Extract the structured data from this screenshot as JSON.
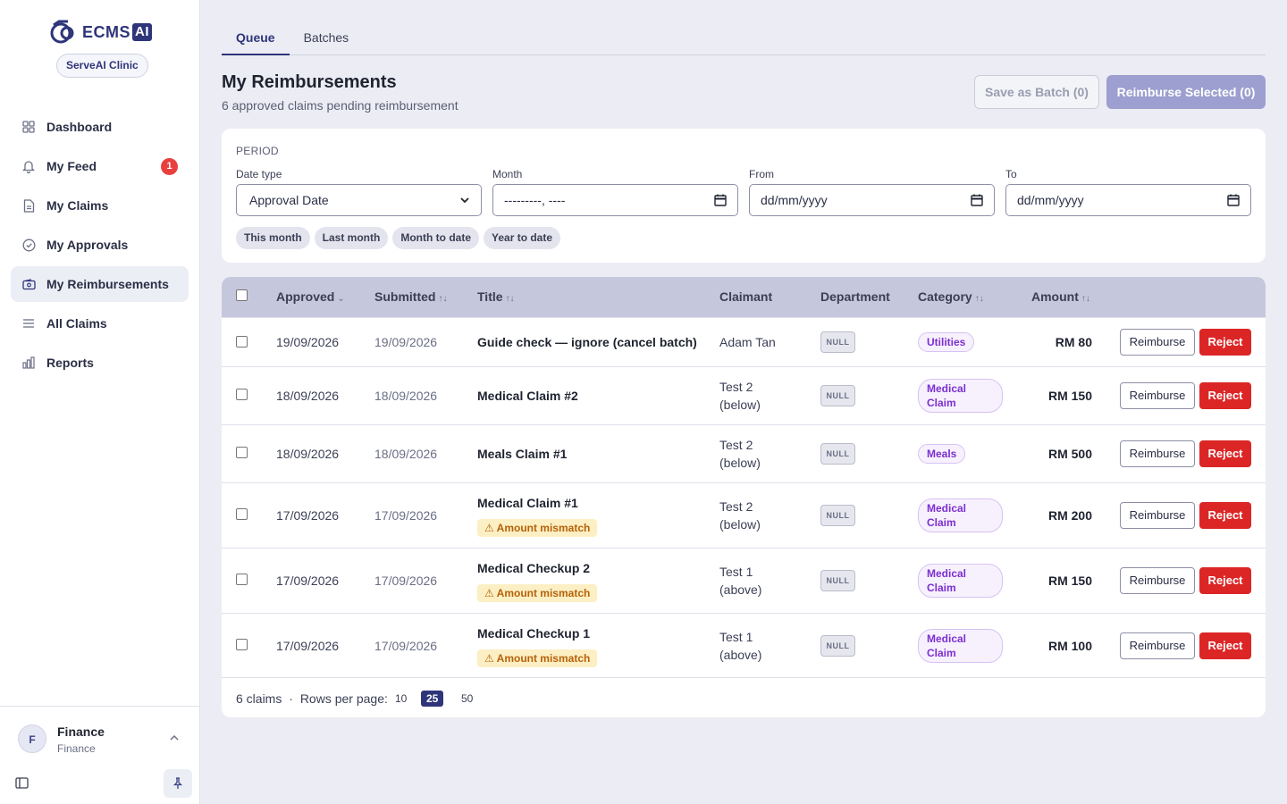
{
  "app": {
    "name": "ECMS",
    "name_suffix": "AI",
    "org": "ServeAI Clinic"
  },
  "sidebar": {
    "items": [
      {
        "label": "Dashboard",
        "icon": "grid-icon"
      },
      {
        "label": "My Feed",
        "icon": "bell-icon",
        "badge": "1"
      },
      {
        "label": "My Claims",
        "icon": "document-icon"
      },
      {
        "label": "My Approvals",
        "icon": "check-circle-icon"
      },
      {
        "label": "My Reimbursements",
        "icon": "wallet-icon",
        "active": true
      },
      {
        "label": "All Claims",
        "icon": "list-icon"
      },
      {
        "label": "Reports",
        "icon": "bar-chart-icon"
      }
    ],
    "user": {
      "initial": "F",
      "name": "Finance",
      "role": "Finance"
    }
  },
  "tabs": [
    {
      "label": "Queue",
      "active": true
    },
    {
      "label": "Batches",
      "active": false
    }
  ],
  "header": {
    "title": "My Reimbursements",
    "subtitle": "6 approved claims pending reimbursement",
    "save_batch_label": "Save as Batch (0)",
    "reimburse_selected_label": "Reimburse Selected (0)"
  },
  "period": {
    "section_label": "PERIOD",
    "date_type_label": "Date type",
    "date_type_value": "Approval Date",
    "month_label": "Month",
    "month_value": "---------, ----",
    "from_label": "From",
    "from_value": "dd/mm/yyyy",
    "to_label": "To",
    "to_value": "dd/mm/yyyy",
    "presets": [
      "This month",
      "Last month",
      "Month to date",
      "Year to date"
    ]
  },
  "table": {
    "columns": {
      "approved": "Approved",
      "submitted": "Submitted",
      "title": "Title",
      "claimant": "Claimant",
      "department": "Department",
      "category": "Category",
      "amount": "Amount"
    },
    "sort_desc_glyph": "⌄",
    "sort_glyph": "↑↓",
    "reimburse_label": "Reimburse",
    "reject_label": "Reject",
    "rows": [
      {
        "approved": "19/09/2026",
        "submitted": "19/09/2026",
        "title": "Guide check — ignore (cancel batch)",
        "warning": "",
        "claimant_line1": "Adam Tan",
        "claimant_line2": "",
        "department": "NULL",
        "category_line1": "Utilities",
        "category_line2": "",
        "amount": "RM 80"
      },
      {
        "approved": "18/09/2026",
        "submitted": "18/09/2026",
        "title": "Medical Claim #2",
        "warning": "",
        "claimant_line1": "Test 2",
        "claimant_line2": "(below)",
        "department": "NULL",
        "category_line1": "Medical",
        "category_line2": "Claim",
        "amount": "RM 150"
      },
      {
        "approved": "18/09/2026",
        "submitted": "18/09/2026",
        "title": "Meals Claim #1",
        "warning": "",
        "claimant_line1": "Test 2",
        "claimant_line2": "(below)",
        "department": "NULL",
        "category_line1": "Meals",
        "category_line2": "",
        "amount": "RM 500"
      },
      {
        "approved": "17/09/2026",
        "submitted": "17/09/2026",
        "title": "Medical Claim #1",
        "warning": "⚠ Amount mismatch",
        "claimant_line1": "Test 2",
        "claimant_line2": "(below)",
        "department": "NULL",
        "category_line1": "Medical",
        "category_line2": "Claim",
        "amount": "RM 200"
      },
      {
        "approved": "17/09/2026",
        "submitted": "17/09/2026",
        "title": "Medical Checkup 2",
        "warning": "⚠ Amount mismatch",
        "claimant_line1": "Test 1",
        "claimant_line2": "(above)",
        "department": "NULL",
        "category_line1": "Medical",
        "category_line2": "Claim",
        "amount": "RM 150"
      },
      {
        "approved": "17/09/2026",
        "submitted": "17/09/2026",
        "title": "Medical Checkup 1",
        "warning": "⚠ Amount mismatch",
        "claimant_line1": "Test 1",
        "claimant_line2": "(above)",
        "department": "NULL",
        "category_line1": "Medical",
        "category_line2": "Claim",
        "amount": "RM 100"
      }
    ],
    "footer": {
      "count": "6 claims",
      "separator": "·",
      "rows_per_page_label": "Rows per page:",
      "page_sizes": [
        "10",
        "25",
        "50"
      ],
      "selected_page_size": "25"
    }
  },
  "colors": {
    "brand": "#2e3579",
    "reject": "#dc2626",
    "category": "#7c2fd0",
    "warning": "#b5620a"
  }
}
